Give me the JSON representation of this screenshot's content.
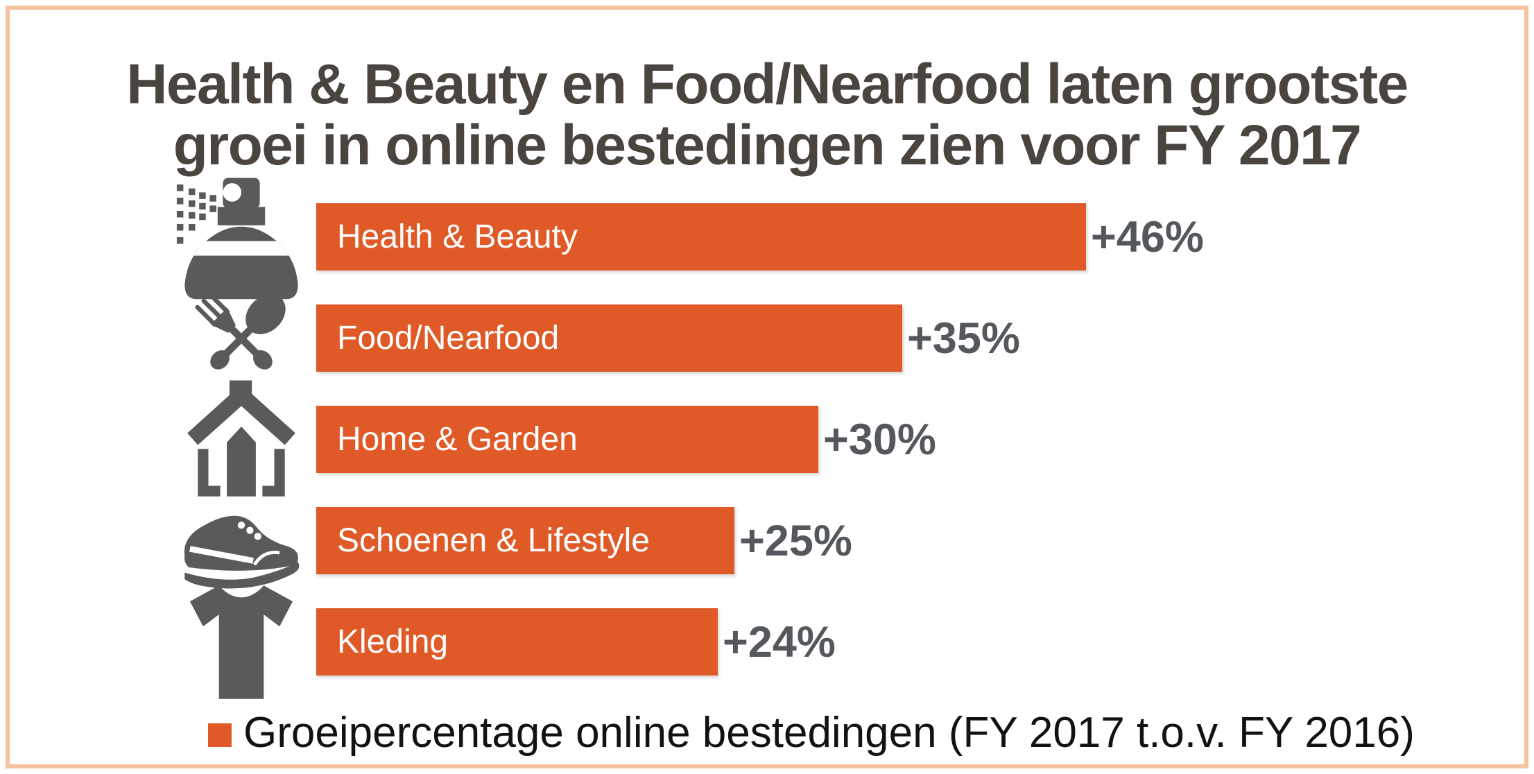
{
  "frame": {
    "border_color": "#F5C2A0",
    "background": "#FFFFFF"
  },
  "title": {
    "line1": "Health & Beauty en Food/Nearfood laten grootste",
    "line2": "groei in online bestedingen zien voor FY 2017",
    "color": "#4A443F"
  },
  "chart_data": {
    "type": "bar",
    "orientation": "horizontal",
    "title": "Health & Beauty en Food/Nearfood laten grootste groei in online bestedingen zien voor FY 2017",
    "categories": [
      "Health & Beauty",
      "Food/Nearfood",
      "Home & Garden",
      "Schoenen & Lifestyle",
      "Kleding"
    ],
    "values": [
      46,
      35,
      30,
      25,
      24
    ],
    "value_labels": [
      "+46%",
      "+35%",
      "+30%",
      "+25%",
      "+24%"
    ],
    "icons": [
      "spray-bottle-icon",
      "fork-spoon-icon",
      "house-icon",
      "shoe-icon",
      "tshirt-icon"
    ],
    "unit": "percent",
    "xlim": [
      0,
      46
    ],
    "grid": false,
    "bar_color": "#E05A27",
    "bar_label_color": "#FFFFFF",
    "value_label_color": "#54575B",
    "icon_color": "#5A5A5A",
    "legend": {
      "position": "bottom",
      "swatch_color": "#E05A27",
      "label": "Groeipercentage online bestedingen (FY 2017 t.o.v. FY 2016)"
    }
  }
}
